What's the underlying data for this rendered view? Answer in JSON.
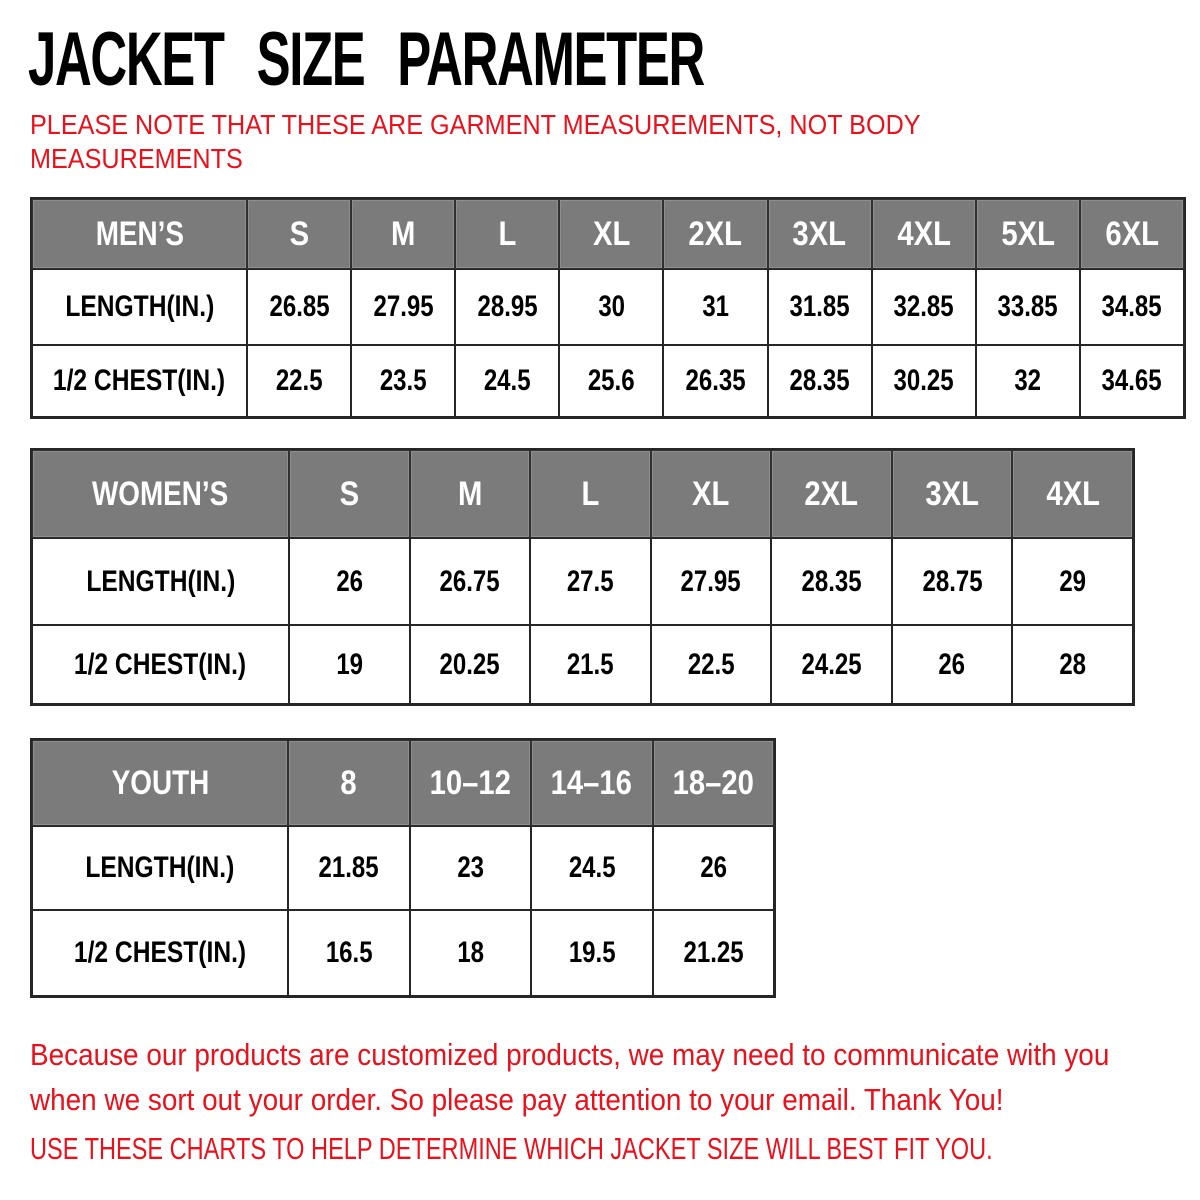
{
  "page": {
    "title": "JACKET SIZE PARAMETER",
    "note_lines": [
      "PLEASE NOTE THAT THESE ARE GARMENT MEASUREMENTS, NOT BODY",
      "MEASUREMENTS"
    ],
    "footer_lines": [
      "Because our products are customized products, we may need to communicate with you",
      "when we sort out your order. So please pay attention to your email. Thank You!"
    ],
    "footer_caps_line": "USE THESE CHARTS TO HELP DETERMINE WHICH JACKET SIZE WILL BEST FIT YOU."
  },
  "colors": {
    "accent_red": "#e8111c",
    "header_bg": "#7b7b7b",
    "header_text": "#ffffff",
    "table_border": "#262626",
    "title_black": "#000000"
  },
  "tables": [
    {
      "id": "mens",
      "header": [
        "MEN’S",
        "S",
        "M",
        "L",
        "XL",
        "2XL",
        "3XL",
        "4XL",
        "5XL",
        "6XL"
      ],
      "rows": [
        {
          "label": "LENGTH(IN.)",
          "values": [
            "26.85",
            "27.95",
            "28.95",
            "30",
            "31",
            "31.85",
            "32.85",
            "33.85",
            "34.85"
          ]
        },
        {
          "label": "1/2 CHEST(IN.)",
          "values": [
            "22.5",
            "23.5",
            "24.5",
            "25.6",
            "26.35",
            "28.35",
            "30.25",
            "32",
            "34.65"
          ]
        }
      ]
    },
    {
      "id": "womens",
      "header": [
        "WOMEN’S",
        "S",
        "M",
        "L",
        "XL",
        "2XL",
        "3XL",
        "4XL"
      ],
      "rows": [
        {
          "label": "LENGTH(IN.)",
          "values": [
            "26",
            "26.75",
            "27.5",
            "27.95",
            "28.35",
            "28.75",
            "29"
          ]
        },
        {
          "label": "1/2 CHEST(IN.)",
          "values": [
            "19",
            "20.25",
            "21.5",
            "22.5",
            "24.25",
            "26",
            "28"
          ]
        }
      ]
    },
    {
      "id": "youth",
      "header": [
        "YOUTH",
        "8",
        "10–12",
        "14–16",
        "18–20"
      ],
      "rows": [
        {
          "label": "LENGTH(IN.)",
          "values": [
            "21.85",
            "23",
            "24.5",
            "26"
          ]
        },
        {
          "label": "1/2 CHEST(IN.)",
          "values": [
            "16.5",
            "18",
            "19.5",
            "21.25"
          ]
        }
      ]
    }
  ]
}
